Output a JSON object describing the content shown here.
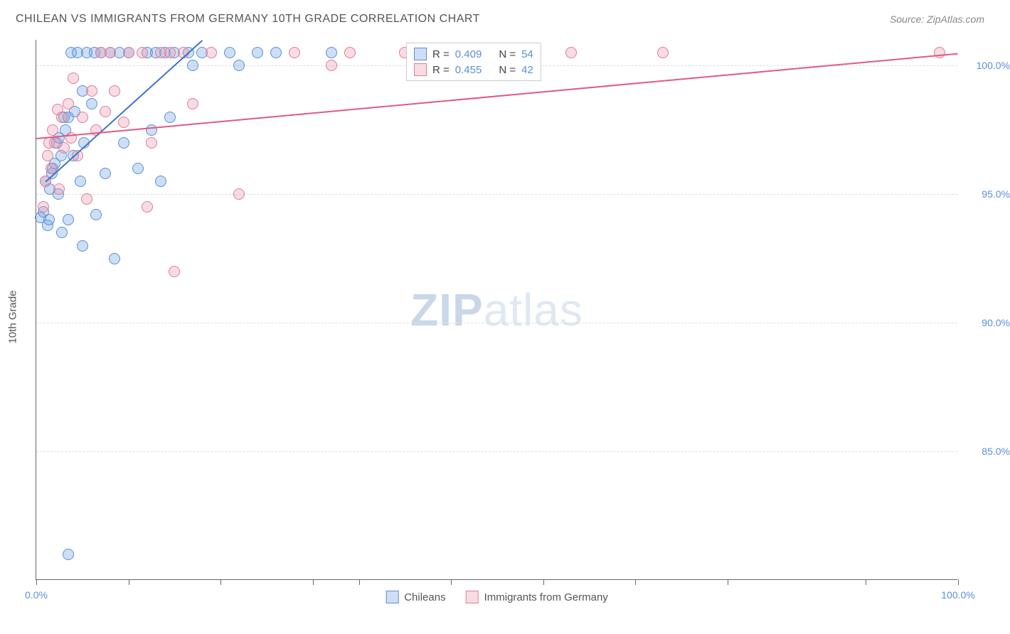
{
  "header": {
    "title": "CHILEAN VS IMMIGRANTS FROM GERMANY 10TH GRADE CORRELATION CHART",
    "source": "Source: ZipAtlas.com"
  },
  "chart": {
    "type": "scatter",
    "ylabel": "10th Grade",
    "background_color": "#ffffff",
    "grid_color": "#dddddd",
    "axis_color": "#666666",
    "tick_label_color": "#5b8fd6",
    "tick_fontsize": 14,
    "label_fontsize": 15,
    "xlim": [
      0,
      100
    ],
    "ylim": [
      80,
      101
    ],
    "xticks": [
      0,
      10,
      20,
      30,
      35,
      45,
      55,
      65,
      75,
      90,
      100
    ],
    "xtick_labels": {
      "0": "0.0%",
      "100": "100.0%"
    },
    "yticks": [
      85,
      90,
      95,
      100
    ],
    "ytick_labels": {
      "85": "85.0%",
      "90": "90.0%",
      "95": "95.0%",
      "100": "100.0%"
    },
    "marker_radius": 8,
    "marker_opacity": 0.55,
    "watermark": "ZIPatlas",
    "watermark_color": "#dfe8f3",
    "series": [
      {
        "name": "Chileans",
        "color": "#6fa3e0",
        "fill": "rgba(111,163,224,0.35)",
        "stroke": "#5b8fd6",
        "R": "0.409",
        "N": "54",
        "trend": {
          "x1": 1,
          "y1": 95.5,
          "x2": 18,
          "y2": 101,
          "color": "#3b73c9",
          "width": 2
        },
        "points": [
          [
            0.5,
            94.1
          ],
          [
            0.8,
            94.3
          ],
          [
            1.0,
            95.5
          ],
          [
            1.2,
            93.8
          ],
          [
            1.4,
            94.0
          ],
          [
            1.5,
            95.2
          ],
          [
            1.7,
            95.8
          ],
          [
            1.8,
            96.0
          ],
          [
            2.0,
            96.2
          ],
          [
            2.2,
            97.0
          ],
          [
            2.4,
            95.0
          ],
          [
            2.5,
            97.2
          ],
          [
            2.7,
            96.5
          ],
          [
            2.8,
            93.5
          ],
          [
            3.0,
            98.0
          ],
          [
            3.2,
            97.5
          ],
          [
            3.5,
            98.0
          ],
          [
            3.5,
            94.0
          ],
          [
            3.8,
            100.5
          ],
          [
            4.0,
            96.5
          ],
          [
            4.2,
            98.2
          ],
          [
            4.5,
            100.5
          ],
          [
            4.8,
            95.5
          ],
          [
            5.0,
            99.0
          ],
          [
            5.2,
            97.0
          ],
          [
            5.5,
            100.5
          ],
          [
            6.0,
            98.5
          ],
          [
            6.3,
            100.5
          ],
          [
            6.5,
            94.2
          ],
          [
            7.0,
            100.5
          ],
          [
            7.5,
            95.8
          ],
          [
            8.0,
            100.5
          ],
          [
            8.5,
            92.5
          ],
          [
            9.0,
            100.5
          ],
          [
            9.5,
            97.0
          ],
          [
            10.0,
            100.5
          ],
          [
            11.0,
            96.0
          ],
          [
            12.0,
            100.5
          ],
          [
            12.5,
            97.5
          ],
          [
            13.0,
            100.5
          ],
          [
            13.5,
            95.5
          ],
          [
            14.0,
            100.5
          ],
          [
            14.5,
            98.0
          ],
          [
            15.0,
            100.5
          ],
          [
            16.5,
            100.5
          ],
          [
            17.0,
            100.0
          ],
          [
            18.0,
            100.5
          ],
          [
            21.0,
            100.5
          ],
          [
            22.0,
            100.0
          ],
          [
            24.0,
            100.5
          ],
          [
            26.0,
            100.5
          ],
          [
            32.0,
            100.5
          ],
          [
            3.5,
            81.0
          ],
          [
            5.0,
            93.0
          ]
        ]
      },
      {
        "name": "Immigrants from Germany",
        "color": "#e89cb0",
        "fill": "rgba(232,156,176,0.35)",
        "stroke": "#e37a98",
        "R": "0.455",
        "N": "42",
        "trend": {
          "x1": 0,
          "y1": 97.2,
          "x2": 100,
          "y2": 100.5,
          "color": "#e05a82",
          "width": 2
        },
        "points": [
          [
            0.8,
            94.5
          ],
          [
            1.0,
            95.5
          ],
          [
            1.2,
            96.5
          ],
          [
            1.4,
            97.0
          ],
          [
            1.6,
            96.0
          ],
          [
            1.8,
            97.5
          ],
          [
            2.0,
            97.0
          ],
          [
            2.3,
            98.3
          ],
          [
            2.5,
            95.2
          ],
          [
            2.8,
            98.0
          ],
          [
            3.0,
            96.8
          ],
          [
            3.5,
            98.5
          ],
          [
            3.8,
            97.2
          ],
          [
            4.0,
            99.5
          ],
          [
            4.5,
            96.5
          ],
          [
            5.0,
            98.0
          ],
          [
            5.5,
            94.8
          ],
          [
            6.0,
            99.0
          ],
          [
            6.5,
            97.5
          ],
          [
            7.0,
            100.5
          ],
          [
            7.5,
            98.2
          ],
          [
            8.0,
            100.5
          ],
          [
            8.5,
            99.0
          ],
          [
            9.5,
            97.8
          ],
          [
            10.0,
            100.5
          ],
          [
            11.5,
            100.5
          ],
          [
            12.0,
            94.5
          ],
          [
            12.5,
            97.0
          ],
          [
            13.5,
            100.5
          ],
          [
            14.5,
            100.5
          ],
          [
            15.0,
            92.0
          ],
          [
            16.0,
            100.5
          ],
          [
            17.0,
            98.5
          ],
          [
            19.0,
            100.5
          ],
          [
            22.0,
            95.0
          ],
          [
            28.0,
            100.5
          ],
          [
            32.0,
            100.0
          ],
          [
            34.0,
            100.5
          ],
          [
            40.0,
            100.5
          ],
          [
            58.0,
            100.5
          ],
          [
            68.0,
            100.5
          ],
          [
            98.0,
            100.5
          ]
        ]
      }
    ],
    "stats_box": {
      "rows": [
        {
          "swatch_fill": "rgba(111,163,224,0.35)",
          "swatch_stroke": "#5b8fd6",
          "r_label": "R =",
          "r_val": "0.409",
          "n_label": "N =",
          "n_val": "54"
        },
        {
          "swatch_fill": "rgba(232,156,176,0.35)",
          "swatch_stroke": "#e37a98",
          "r_label": "R =",
          "r_val": "0.455",
          "n_label": "N =",
          "n_val": "42"
        }
      ]
    },
    "legend": [
      {
        "swatch_fill": "rgba(111,163,224,0.35)",
        "swatch_stroke": "#5b8fd6",
        "label": "Chileans"
      },
      {
        "swatch_fill": "rgba(232,156,176,0.35)",
        "swatch_stroke": "#e37a98",
        "label": "Immigrants from Germany"
      }
    ]
  }
}
